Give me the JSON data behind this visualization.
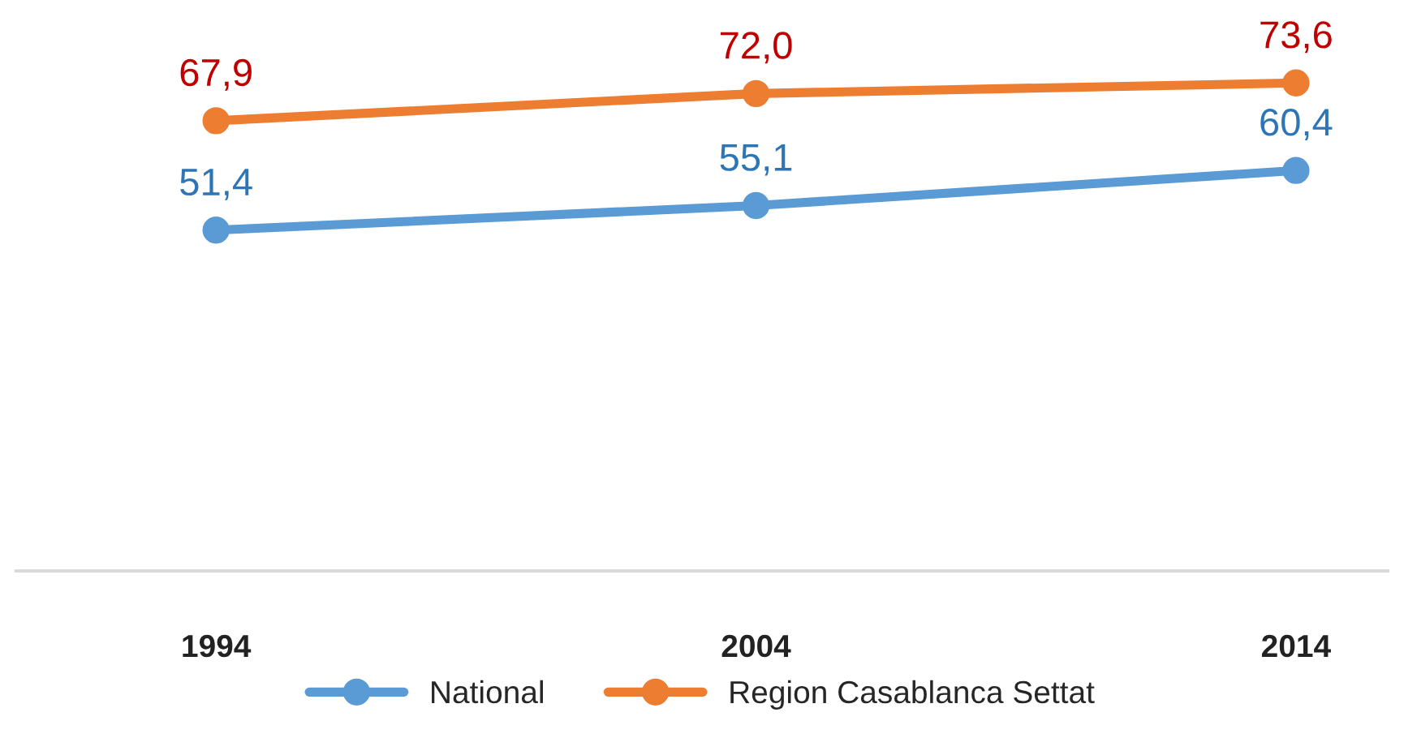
{
  "chart_data": {
    "type": "line",
    "categories": [
      "1994",
      "2004",
      "2014"
    ],
    "series": [
      {
        "name": "National",
        "color": "#5b9bd5",
        "values": [
          51.4,
          55.1,
          60.4
        ],
        "value_labels": [
          "51,4",
          "55,1",
          "60,4"
        ]
      },
      {
        "name": "Region Casablanca Settat",
        "color": "#ed7d31",
        "values": [
          67.9,
          72.0,
          73.6
        ],
        "value_labels": [
          "67,9",
          "72,0",
          "73,6"
        ]
      }
    ],
    "tick_labels": "x",
    "grid": false,
    "legend": "bottom",
    "marker": "circle",
    "line_style": "solid"
  }
}
